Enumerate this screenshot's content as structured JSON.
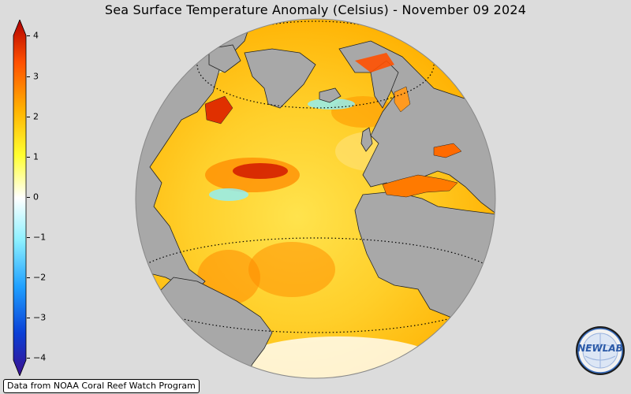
{
  "title": "Sea Surface Temperature Anomaly (Celsius) - November 09 2024",
  "credit": "Data from NOAA Coral Reef Watch Program",
  "logo": {
    "text": "NEWLAB",
    "icon": "newlab-logo-icon"
  },
  "colorbar": {
    "min": -4,
    "max": 4,
    "ticks": [
      "4",
      "3",
      "2",
      "1",
      "0",
      "−1",
      "−2",
      "−3",
      "−4"
    ],
    "colors": [
      "#3b0f8f",
      "#0a3fd6",
      "#1fa0ff",
      "#8cf0ff",
      "#ffffff",
      "#ffff30",
      "#ffb000",
      "#ff5000",
      "#b00000"
    ]
  },
  "map": {
    "projection": "orthographic",
    "region": "Atlantic Ocean",
    "ocean_colors": [
      "#ffe34d",
      "#ffd020",
      "#ffb000",
      "#ff8a00"
    ],
    "land_color": "#a8a8a8"
  }
}
